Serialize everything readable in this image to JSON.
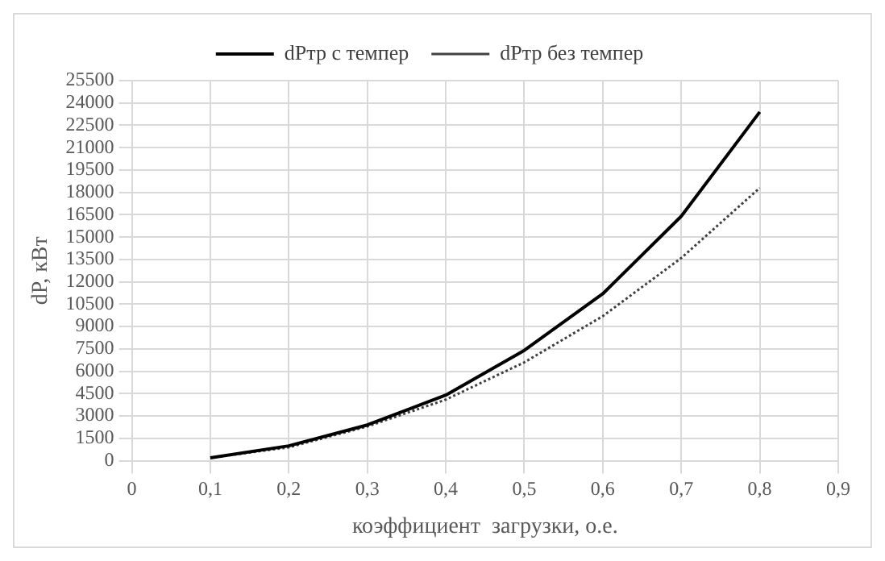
{
  "chart_data": {
    "type": "line",
    "xlabel": "коэффициент  загрузки, о.е.",
    "ylabel": "dP, кВт",
    "legend": "top",
    "grid": true,
    "marker": "none",
    "xlim": [
      0,
      0.9
    ],
    "xticks": [
      {
        "value": 0,
        "label": "0"
      },
      {
        "value": 0.1,
        "label": "0,1"
      },
      {
        "value": 0.2,
        "label": "0,2"
      },
      {
        "value": 0.3,
        "label": "0,3"
      },
      {
        "value": 0.4,
        "label": "0,4"
      },
      {
        "value": 0.5,
        "label": "0,5"
      },
      {
        "value": 0.6,
        "label": "0,6"
      },
      {
        "value": 0.7,
        "label": "0,7"
      },
      {
        "value": 0.8,
        "label": "0,8"
      },
      {
        "value": 0.9,
        "label": "0,9"
      }
    ],
    "ylim": [
      0,
      25500
    ],
    "yticks": [
      0,
      1500,
      3000,
      4500,
      6000,
      7500,
      9000,
      10500,
      12000,
      13500,
      15000,
      16500,
      18000,
      19500,
      21000,
      22500,
      24000,
      25500
    ],
    "x": [
      0.1,
      0.2,
      0.3,
      0.4,
      0.5,
      0.6,
      0.7,
      0.8
    ],
    "series": [
      {
        "name": "dPтр с темпер",
        "color": "#000000",
        "line_style": "solid",
        "values": [
          200,
          1000,
          2400,
          4400,
          7400,
          11200,
          16400,
          23400
        ]
      },
      {
        "name": "dPтр без темпер",
        "color": "#404040",
        "line_style": "dotted",
        "values": [
          200,
          900,
          2300,
          4100,
          6600,
          9700,
          13600,
          18300
        ]
      }
    ]
  }
}
